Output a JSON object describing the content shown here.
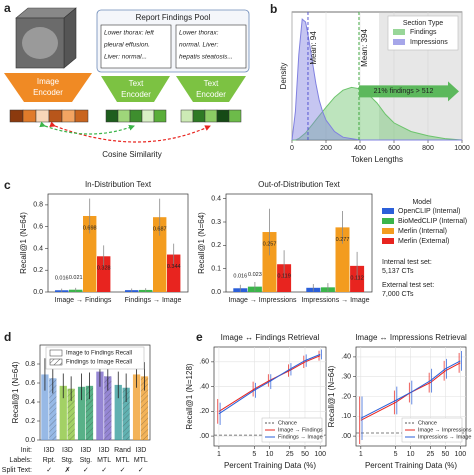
{
  "diagram": {
    "panel": "a",
    "pool_title": "Report Findings Pool",
    "reports": [
      [
        "Lower thorax: left",
        "pleural effusion.",
        "Liver: normal..."
      ],
      [
        "Lower thorax:",
        "normal. Liver:",
        "hepatis steatosis..."
      ]
    ],
    "image_encoder": [
      "Image",
      "Encoder"
    ],
    "text_encoders": [
      [
        "Text",
        "Encoder"
      ],
      [
        "Text",
        "Encoder"
      ]
    ],
    "similarity": "Cosine Similarity"
  },
  "chart_data": [
    {
      "type": "area",
      "panel": "b",
      "xlabel": "Token Lengths",
      "ylabel": "Density",
      "x": [
        0,
        20,
        40,
        60,
        80,
        100,
        120,
        140,
        160,
        180,
        200,
        250,
        300,
        350,
        400,
        450,
        500,
        550,
        600,
        700,
        800,
        900,
        1000
      ],
      "xlim": [
        0,
        1000
      ],
      "xticks": [
        0,
        200,
        400,
        600,
        800,
        1000
      ],
      "ylim": [
        0,
        0.009
      ],
      "grid": true,
      "legend_title": "Section Type",
      "legend": "upper right",
      "series": [
        {
          "name": "Findings",
          "color": "#6cc46c",
          "values": [
            0,
            0,
            0.0001,
            0.0003,
            0.0005,
            0.0008,
            0.0011,
            0.0014,
            0.0017,
            0.002,
            0.0023,
            0.003,
            0.0035,
            0.0037,
            0.0036,
            0.0032,
            0.0026,
            0.0018,
            0.0012,
            0.0006,
            0.0003,
            0.0001,
            0
          ]
        },
        {
          "name": "Impressions",
          "color": "#8080e0",
          "values": [
            0,
            0.002,
            0.006,
            0.0085,
            0.0083,
            0.007,
            0.0055,
            0.004,
            0.0028,
            0.002,
            0.0014,
            0.0006,
            0.0002,
            0.0001,
            0,
            0,
            0,
            0,
            0,
            0,
            0,
            0,
            0
          ]
        }
      ],
      "mean_lines": [
        {
          "label": "Mean: 94",
          "x": 94,
          "color": "#4a4ad0"
        },
        {
          "label": "Mean: 394",
          "x": 394,
          "color": "#35a535"
        }
      ],
      "shade_from": 512,
      "annotation": "21% findings > 512"
    },
    {
      "type": "bar",
      "panel": "c",
      "title": "In-Distribution Text",
      "ylabel": "Recall@1 (N=64)",
      "categories": [
        "Image → Findings",
        "Findings → Image"
      ],
      "ylim": [
        0,
        0.9
      ],
      "yticks": [
        {
          "value": 0,
          "label": "0.0"
        },
        {
          "value": 0.2,
          "label": "0.2"
        },
        {
          "value": 0.4,
          "label": "0.4"
        },
        {
          "value": 0.6,
          "label": "0.6"
        },
        {
          "value": 0.8,
          "label": "0.8"
        }
      ],
      "series": [
        {
          "color": "#2b5fd9",
          "values": [
            0.016,
            0.017
          ],
          "errors": [
            0.015,
            0.015
          ],
          "value_labels": [
            "0.016",
            null
          ]
        },
        {
          "color": "#3bb54a",
          "values": [
            0.021,
            0.019
          ],
          "errors": [
            0.017,
            0.016
          ],
          "value_labels": [
            "0.021",
            null
          ]
        },
        {
          "color": "#f39c1f",
          "values": [
            0.698,
            0.687
          ],
          "errors": [
            0.16,
            0.17
          ],
          "value_labels": [
            "0.698",
            "0.687"
          ]
        },
        {
          "color": "#e8241f",
          "values": [
            0.328,
            0.344
          ],
          "errors": [
            0.1,
            0.1
          ],
          "value_labels": [
            "0.328",
            "0.344"
          ]
        }
      ]
    },
    {
      "type": "bar",
      "title": "Out-of-Distribution Text",
      "ylabel": "Recall@1 (N=64)",
      "categories": [
        "Image → Impressions",
        "Impressions → Image"
      ],
      "ylim": [
        0,
        0.42
      ],
      "yticks": [
        {
          "value": 0,
          "label": "0.0"
        },
        {
          "value": 0.1,
          "label": "0.1"
        },
        {
          "value": 0.2,
          "label": "0.2"
        },
        {
          "value": 0.3,
          "label": "0.3"
        },
        {
          "value": 0.4,
          "label": "0.4"
        }
      ],
      "legend_title": "Model",
      "legend": "outside right",
      "notes": [
        "Internal test set:",
        "5,137 CTs",
        "External test set:",
        "7,000 CTs"
      ],
      "series": [
        {
          "name": "OpenCLIP (Internal)",
          "color": "#2b5fd9",
          "values": [
            0.016,
            0.018
          ],
          "errors": [
            0.015,
            0.016
          ],
          "value_labels": [
            "0.016",
            null
          ]
        },
        {
          "name": "BioMedCLIP (Internal)",
          "color": "#3bb54a",
          "values": [
            0.023,
            0.02
          ],
          "errors": [
            0.02,
            0.018
          ],
          "value_labels": [
            "0.023",
            null
          ]
        },
        {
          "name": "Merlin (Internal)",
          "color": "#f39c1f",
          "values": [
            0.257,
            0.277
          ],
          "errors": [
            0.1,
            0.07
          ],
          "value_labels": [
            "0.257",
            "0.277"
          ]
        },
        {
          "name": "Merlin (External)",
          "color": "#e8241f",
          "values": [
            0.119,
            0.112
          ],
          "errors": [
            0.06,
            0.06
          ],
          "value_labels": [
            "0.119",
            "0.112"
          ]
        }
      ]
    },
    {
      "type": "bar",
      "panel": "d",
      "ylabel": "Recall@1 (N=64)",
      "ylim": [
        0,
        1.0
      ],
      "yticks": [
        {
          "value": 0,
          "label": "0.0"
        },
        {
          "value": 0.2,
          "label": "0.2"
        },
        {
          "value": 0.4,
          "label": "0.4"
        },
        {
          "value": 0.6,
          "label": "0.6"
        },
        {
          "value": 0.8,
          "label": "0.8"
        }
      ],
      "colors": [
        "#7da7e0",
        "#8cc63f",
        "#2e9e6a",
        "#7b68c8",
        "#3a9e9e",
        "#f0a030"
      ],
      "row_labels": [
        "Init:",
        "Labels:",
        "Split Text:"
      ],
      "rows": [
        [
          "I3D",
          "I3D",
          "I3D",
          "I3D",
          "Rand",
          "I3D"
        ],
        [
          "Rpt.",
          "Stg.",
          "Stg.",
          "MTL",
          "MTL",
          "MTL"
        ],
        [
          "✓",
          "✗",
          "✓",
          "✓",
          "✓",
          "✓"
        ]
      ],
      "legend": "upper center",
      "series": [
        {
          "name": "Image to Findings Recall",
          "values": [
            0.69,
            0.57,
            0.56,
            0.72,
            0.58,
            0.69
          ],
          "errors": [
            0.17,
            0.13,
            0.14,
            0.16,
            0.14,
            0.14
          ]
        },
        {
          "name": "Findings to Image Recall",
          "hatch": true,
          "values": [
            0.65,
            0.54,
            0.57,
            0.67,
            0.55,
            0.67
          ],
          "errors": [
            0.16,
            0.13,
            0.14,
            0.15,
            0.15,
            0.15
          ]
        }
      ]
    },
    {
      "type": "line",
      "panel": "e",
      "title": "Image ↔ Findings Retrieval",
      "ylabel": "Recall@1 (N=128)",
      "xlabel": "Percent Training Data (%)",
      "xscale": "log",
      "x": [
        1,
        5,
        10,
        25,
        50,
        100
      ],
      "xlim": [
        0.8,
        130
      ],
      "xticks": [
        1,
        5,
        10,
        25,
        50,
        100
      ],
      "ylim": [
        -0.08,
        0.72
      ],
      "yticks": [
        {
          "value": 0,
          "label": ".00"
        },
        {
          "value": 0.2,
          "label": ".20"
        },
        {
          "value": 0.4,
          "label": ".40"
        },
        {
          "value": 0.6,
          "label": ".60"
        }
      ],
      "grid": true,
      "chance": {
        "name": "Chance",
        "value": 0.0078
      },
      "legend": "lower right",
      "series": [
        {
          "name": "Image → Findings",
          "color": "#e8241f",
          "values": [
            0.2,
            0.38,
            0.45,
            0.53,
            0.6,
            0.65
          ],
          "errors": [
            0.1,
            0.06,
            0.05,
            0.05,
            0.05,
            0.04
          ]
        },
        {
          "name": "Findings → Image",
          "color": "#2b5fd9",
          "values": [
            0.18,
            0.37,
            0.44,
            0.54,
            0.61,
            0.66
          ],
          "errors": [
            0.09,
            0.06,
            0.06,
            0.05,
            0.05,
            0.04
          ]
        }
      ]
    },
    {
      "type": "line",
      "title": "Image ↔ Impressions Retrieval",
      "ylabel": "Recall@1 (N=64)",
      "xlabel": "Percent Training Data (%)",
      "xscale": "log",
      "x": [
        1,
        5,
        10,
        25,
        50,
        100
      ],
      "xlim": [
        0.8,
        130
      ],
      "xticks": [
        1,
        5,
        10,
        25,
        50,
        100
      ],
      "ylim": [
        -0.05,
        0.45
      ],
      "yticks": [
        {
          "value": 0,
          "label": ".00"
        },
        {
          "value": 0.1,
          "label": ".10"
        },
        {
          "value": 0.2,
          "label": ".20"
        },
        {
          "value": 0.3,
          "label": ".30"
        },
        {
          "value": 0.4,
          "label": ".40"
        }
      ],
      "grid": true,
      "chance": {
        "name": "Chance",
        "value": 0.0156
      },
      "legend": "lower right",
      "series": [
        {
          "name": "Image → Impressions",
          "color": "#e8241f",
          "values": [
            0.08,
            0.17,
            0.22,
            0.27,
            0.33,
            0.37
          ],
          "errors": [
            0.12,
            0.06,
            0.05,
            0.05,
            0.05,
            0.05
          ]
        },
        {
          "name": "Impressions → Image",
          "color": "#2b5fd9",
          "values": [
            0.09,
            0.18,
            0.22,
            0.28,
            0.34,
            0.38
          ],
          "errors": [
            0.11,
            0.07,
            0.06,
            0.06,
            0.05,
            0.05
          ]
        }
      ]
    }
  ]
}
